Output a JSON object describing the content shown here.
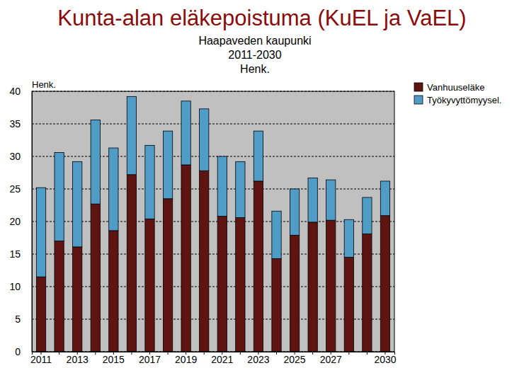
{
  "chart_data": {
    "type": "bar",
    "title": "Kunta-alan eläkepoistuma (KuEL ja VaEL)",
    "subtitle": [
      "Haapaveden kaupunki",
      "2011-2030",
      "Henk."
    ],
    "y_label": "Henk.",
    "categories": [
      "2011",
      null,
      "2013",
      null,
      "2015",
      null,
      "2017",
      null,
      "2019",
      null,
      "2021",
      null,
      "2023",
      null,
      "2025",
      null,
      "2027",
      null,
      null,
      "2030"
    ],
    "series": [
      {
        "name": "Vanhuuseläke",
        "color": "#5e1410",
        "values": [
          11.5,
          17.0,
          16.1,
          22.7,
          18.6,
          27.2,
          20.4,
          23.5,
          28.7,
          27.8,
          20.8,
          20.6,
          26.2,
          14.3,
          17.9,
          19.9,
          20.2,
          14.5,
          18.1,
          20.9
        ]
      },
      {
        "name": "Työkyvyttömyysel.",
        "color": "#4f9dc6",
        "values": [
          13.7,
          13.6,
          13.1,
          12.9,
          12.7,
          12.0,
          11.3,
          10.4,
          9.8,
          9.5,
          9.2,
          8.6,
          7.7,
          7.3,
          7.1,
          6.8,
          6.2,
          5.8,
          5.6,
          5.3
        ]
      }
    ],
    "stacked": true,
    "ylim": [
      0,
      40
    ],
    "yticks": [
      0,
      5,
      10,
      15,
      20,
      25,
      30,
      35,
      40
    ],
    "grid": true,
    "legend": "top-right"
  }
}
